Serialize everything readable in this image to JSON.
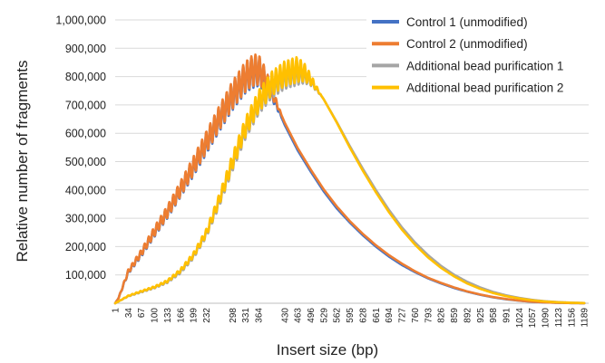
{
  "chart_data": {
    "type": "line",
    "xlabel": "Insert size (bp)",
    "ylabel": "Relative number of fragments",
    "xlim": [
      1,
      1200
    ],
    "ylim": [
      0,
      1000000
    ],
    "y_ticks": [
      100000,
      200000,
      300000,
      400000,
      500000,
      600000,
      700000,
      800000,
      900000,
      1000000
    ],
    "y_tick_labels": [
      "100,000",
      "200,000",
      "300,000",
      "400,000",
      "500,000",
      "600,000",
      "700,000",
      "800,000",
      "900,000",
      "1,000,000"
    ],
    "x_tick_labels": [
      "1",
      "34",
      "67",
      "100",
      "133",
      "166",
      "199",
      "232",
      "298",
      "331",
      "364",
      "430",
      "463",
      "496",
      "529",
      "562",
      "595",
      "628",
      "661",
      "694",
      "727",
      "760",
      "793",
      "826",
      "859",
      "892",
      "925",
      "958",
      "991",
      "1024",
      "1057",
      "1090",
      "1123",
      "1156",
      "1189"
    ],
    "x_tick_positions": [
      1,
      34,
      67,
      100,
      133,
      166,
      199,
      232,
      298,
      331,
      364,
      430,
      463,
      496,
      529,
      562,
      595,
      628,
      661,
      694,
      727,
      760,
      793,
      826,
      859,
      892,
      925,
      958,
      991,
      1024,
      1057,
      1090,
      1123,
      1156,
      1189
    ],
    "grid": "horizontal",
    "legend_position": "top-right",
    "series": [
      {
        "name": "Control 1 (unmodified)",
        "color": "#4472C4",
        "oscillation": 55000,
        "x": [
          1,
          10,
          34,
          67,
          100,
          133,
          166,
          199,
          232,
          265,
          298,
          331,
          350,
          364,
          380,
          397,
          430,
          463,
          496,
          529,
          562,
          595,
          628,
          661,
          694,
          727,
          760,
          793,
          826,
          859,
          892,
          925,
          958,
          991,
          1024,
          1057,
          1090,
          1123,
          1156,
          1189
        ],
        "y": [
          0,
          20000,
          110000,
          175000,
          250000,
          320000,
          400000,
          480000,
          565000,
          650000,
          730000,
          795000,
          815000,
          820000,
          790000,
          740000,
          630000,
          540000,
          465000,
          395000,
          335000,
          285000,
          240000,
          200000,
          165000,
          135000,
          110000,
          88000,
          70000,
          54000,
          41000,
          30000,
          21000,
          14000,
          9000,
          5000,
          3000,
          1500,
          600,
          200
        ]
      },
      {
        "name": "Control 2 (unmodified)",
        "color": "#ED7D31",
        "oscillation": 55000,
        "x": [
          1,
          10,
          34,
          67,
          100,
          133,
          166,
          199,
          232,
          265,
          298,
          331,
          350,
          364,
          380,
          397,
          430,
          463,
          496,
          529,
          562,
          595,
          628,
          661,
          694,
          727,
          760,
          793,
          826,
          859,
          892,
          925,
          958,
          991,
          1024,
          1057,
          1090,
          1123,
          1156,
          1189
        ],
        "y": [
          0,
          20000,
          112000,
          178000,
          253000,
          323000,
          403000,
          485000,
          570000,
          655000,
          735000,
          800000,
          822000,
          825000,
          795000,
          748000,
          638000,
          548000,
          472000,
          402000,
          342000,
          290000,
          245000,
          205000,
          170000,
          140000,
          113000,
          90000,
          72000,
          56000,
          42000,
          31000,
          22000,
          15000,
          9500,
          5500,
          3200,
          1600,
          700,
          200
        ]
      },
      {
        "name": "Additional bead purification 1",
        "color": "#A5A5A5",
        "oscillation": 40000,
        "x": [
          1,
          34,
          67,
          100,
          133,
          166,
          199,
          232,
          265,
          298,
          331,
          364,
          397,
          430,
          463,
          480,
          496,
          529,
          562,
          595,
          628,
          661,
          694,
          727,
          760,
          793,
          826,
          859,
          892,
          925,
          958,
          991,
          1024,
          1057,
          1090,
          1123,
          1156,
          1189
        ],
        "y": [
          0,
          25000,
          40000,
          55000,
          75000,
          110000,
          165000,
          245000,
          360000,
          490000,
          610000,
          700000,
          760000,
          795000,
          810000,
          805000,
          785000,
          720000,
          640000,
          555000,
          475000,
          400000,
          330000,
          268000,
          215000,
          170000,
          132000,
          101000,
          76000,
          56000,
          40000,
          28000,
          19000,
          12000,
          7000,
          4000,
          2000,
          800
        ]
      },
      {
        "name": "Additional bead purification 2",
        "color": "#FFC000",
        "oscillation": 45000,
        "x": [
          1,
          34,
          67,
          100,
          133,
          166,
          199,
          232,
          265,
          298,
          331,
          364,
          397,
          430,
          463,
          480,
          496,
          529,
          562,
          595,
          628,
          661,
          694,
          727,
          760,
          793,
          826,
          859,
          892,
          925,
          958,
          991,
          1024,
          1057,
          1090,
          1123,
          1156,
          1189
        ],
        "y": [
          0,
          26000,
          42000,
          57000,
          78000,
          115000,
          170000,
          250000,
          368000,
          500000,
          622000,
          712000,
          775000,
          810000,
          825000,
          815000,
          790000,
          720000,
          638000,
          550000,
          468000,
          392000,
          322000,
          260000,
          207000,
          162000,
          125000,
          95000,
          70000,
          51000,
          36000,
          25000,
          17000,
          10500,
          6200,
          3500,
          1800,
          700
        ]
      }
    ]
  }
}
